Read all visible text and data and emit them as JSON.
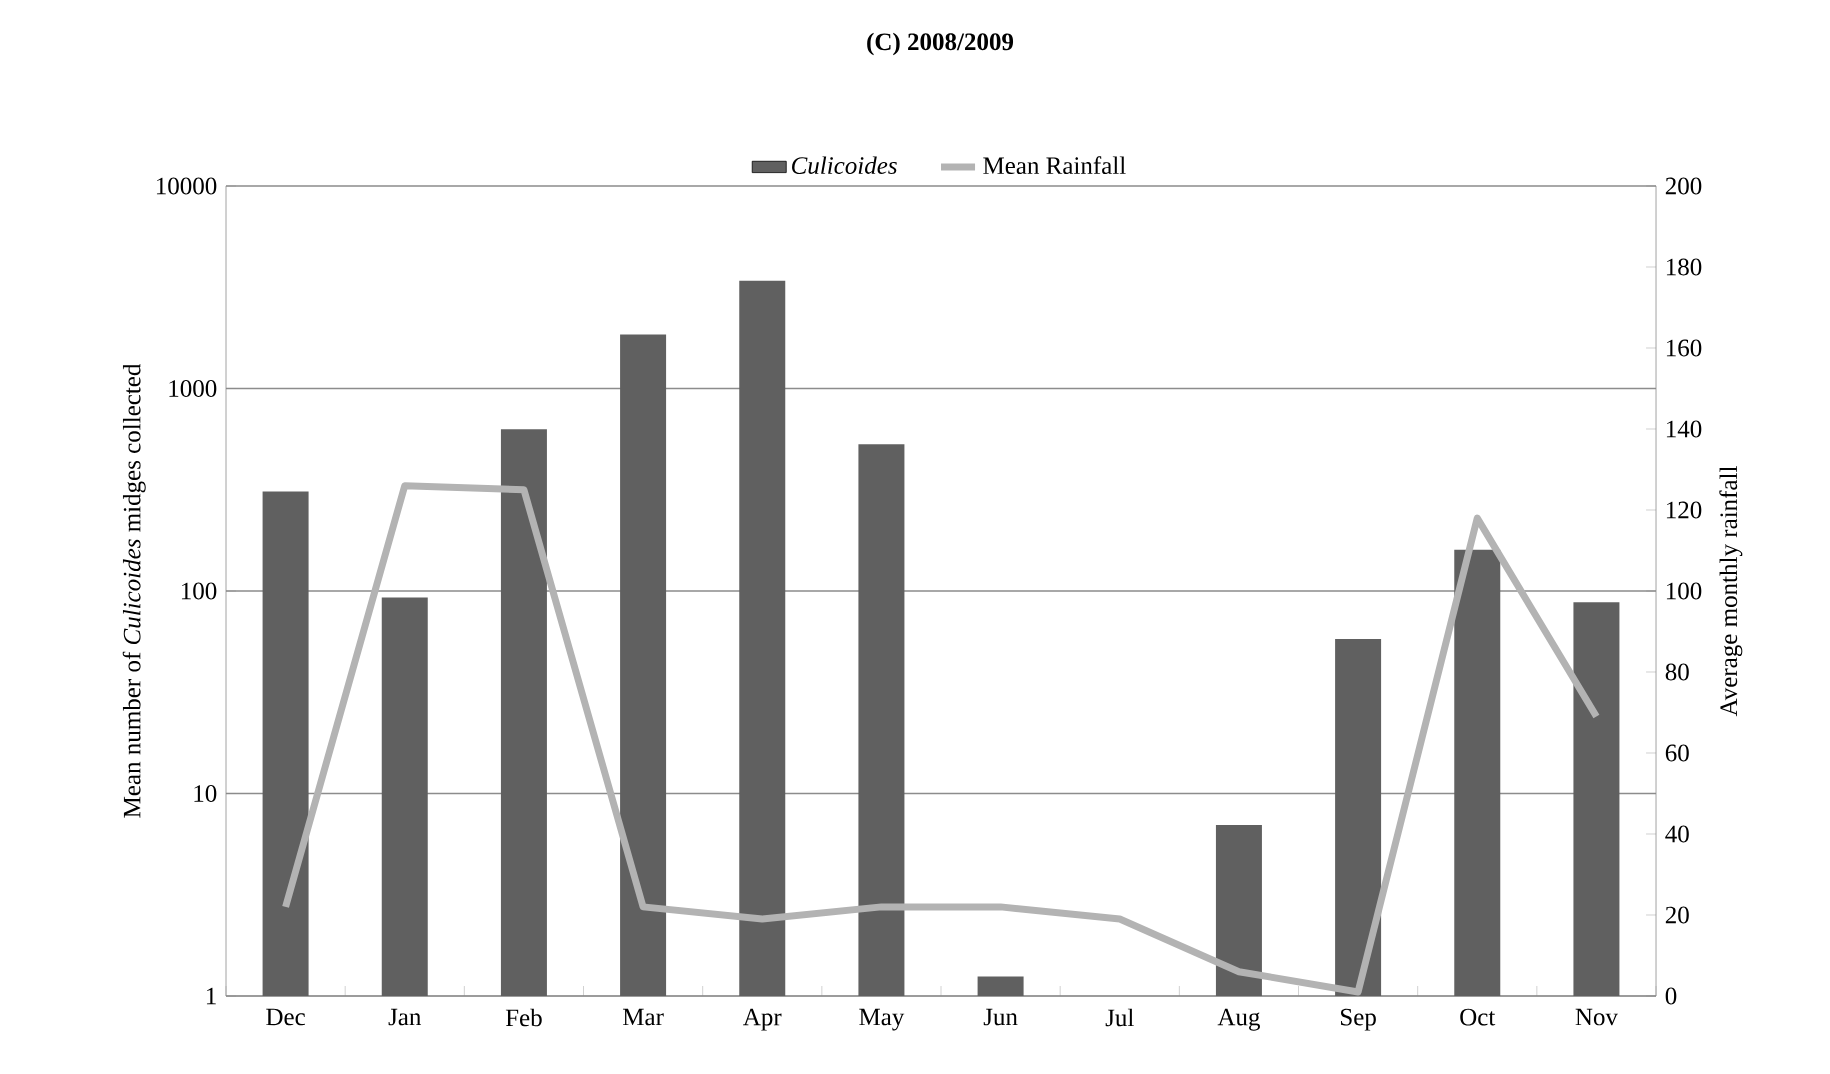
{
  "chart_data": {
    "type": "bar",
    "title": "(C) 2008/2009",
    "ylabel": "Mean number of *Culicoides* midges collected",
    "y2label": "Average monthly rainfall",
    "categories": [
      "Dec",
      "Jan",
      "Feb",
      "Mar",
      "Apr",
      "May",
      "Jun",
      "Jul",
      "Aug",
      "Sep",
      "Oct",
      "Nov"
    ],
    "series": [
      {
        "name": "Culicoides",
        "color": "#606060",
        "values": [
          310,
          93,
          630,
          1850,
          3400,
          530,
          1.25,
          null,
          7,
          58,
          160,
          88
        ]
      },
      {
        "name": "Mean  Rainfall",
        "type": "line",
        "axis": "y2",
        "color": "#b3b3b3",
        "line_style": "solid",
        "values": [
          22,
          126,
          125,
          22,
          19,
          22,
          22,
          19,
          6,
          1,
          118,
          69
        ]
      }
    ],
    "log": "y",
    "ylim": [
      1,
      10000
    ],
    "yticks": [
      1,
      10,
      100,
      1000,
      10000
    ],
    "y2lim": [
      0,
      200
    ],
    "y2ticks": [
      0,
      20,
      40,
      60,
      80,
      100,
      120,
      140,
      160,
      180,
      200
    ],
    "grid": "y",
    "legend": "top",
    "marker": "none"
  }
}
